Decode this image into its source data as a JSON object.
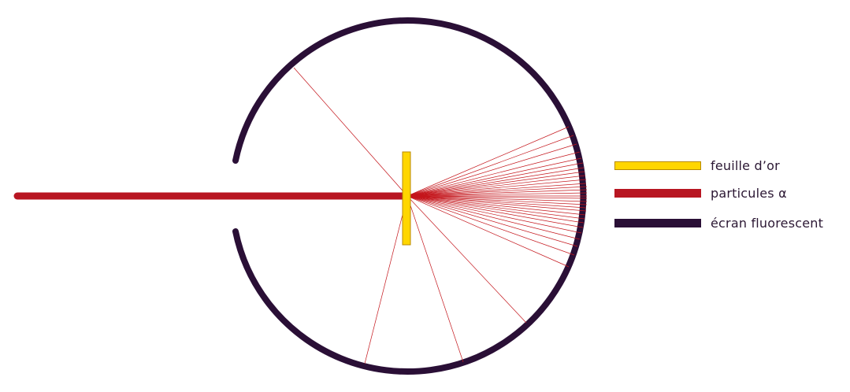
{
  "legend": [
    {
      "key": "gold_foil",
      "label": "feuille d’or",
      "color": "#ffd600"
    },
    {
      "key": "alpha",
      "label": "particules α",
      "color": "#b81622"
    },
    {
      "key": "screen",
      "label": "écran fluorescent",
      "color": "#2a0f36"
    }
  ],
  "colors": {
    "gold_stroke": "#b88a00",
    "ray": "#c4161c"
  }
}
